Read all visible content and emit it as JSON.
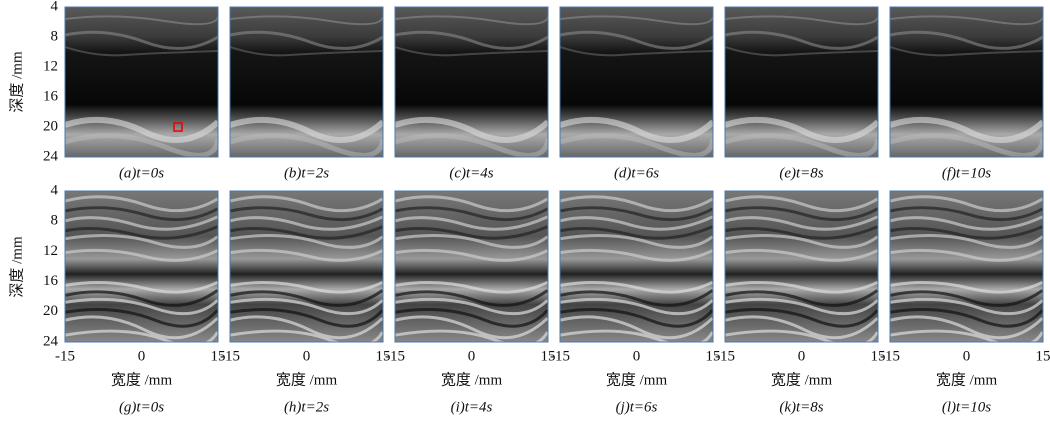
{
  "figure": {
    "y_axis_label": "深度 /mm",
    "x_axis_label": "宽度 /mm",
    "y_ticks": [
      "4",
      "8",
      "12",
      "16",
      "20",
      "24"
    ],
    "x_ticks": [
      "-15",
      "0",
      "15"
    ],
    "top_captions": [
      "(a)t=0s",
      "(b)t=2s",
      "(c)t=4s",
      "(d)t=6s",
      "(e)t=8s",
      "(f)t=10s"
    ],
    "bottom_captions": [
      "(g)t=0s",
      "(h)t=2s",
      "(i)t=4s",
      "(j)t=6s",
      "(k)t=8s",
      "(l)t=10s"
    ]
  }
}
